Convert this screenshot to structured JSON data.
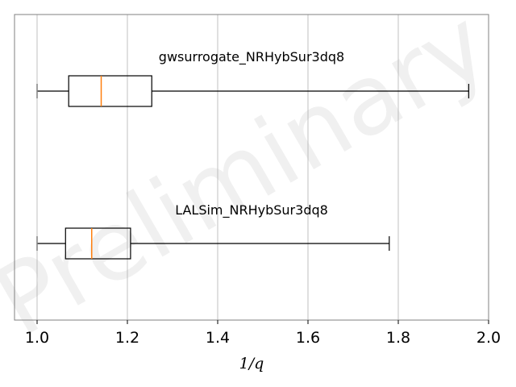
{
  "chart_data": {
    "type": "boxplot",
    "orientation": "horizontal",
    "xlabel": "1/q",
    "xlim": [
      0.95,
      2.0
    ],
    "xticks": [
      1.0,
      1.2,
      1.4,
      1.6,
      1.8,
      2.0
    ],
    "xtick_labels": [
      "1.0",
      "1.2",
      "1.4",
      "1.6",
      "1.8",
      "2.0"
    ],
    "grid": "vertical",
    "watermark": "Preliminary",
    "boxes": [
      {
        "label": "gwsurrogate_NRHybSur3dq8",
        "whisker_low": 1.0,
        "q1": 1.07,
        "median": 1.142,
        "q3": 1.254,
        "whisker_high": 1.956
      },
      {
        "label": "LALSim_NRHybSur3dq8",
        "whisker_low": 1.0,
        "q1": 1.063,
        "median": 1.121,
        "q3": 1.207,
        "whisker_high": 1.78
      }
    ],
    "colors": {
      "box": "#000000",
      "median": "#ff7f0e",
      "grid": "#b0b0b0",
      "axes": "#808080"
    }
  }
}
